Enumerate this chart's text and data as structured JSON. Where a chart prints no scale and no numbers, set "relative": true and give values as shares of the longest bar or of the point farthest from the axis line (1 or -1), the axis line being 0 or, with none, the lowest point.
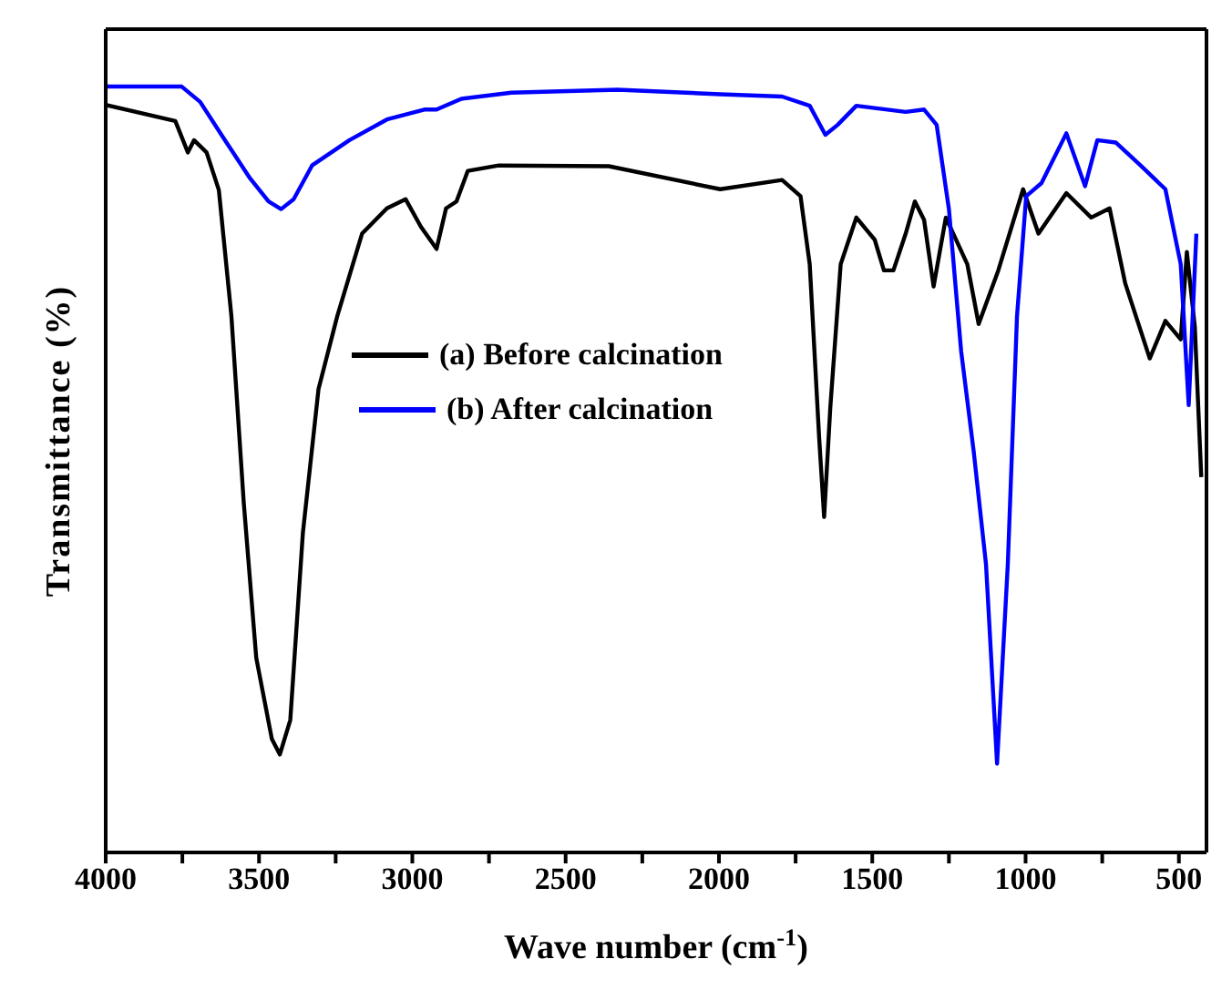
{
  "chart_data": {
    "type": "line",
    "relative": true,
    "xlabel": "Wave number (cm$^{-1}$)",
    "ylabel": "Transmittance (%)",
    "xlim": [
      4000,
      410
    ],
    "xticks": [
      4000,
      {
        "value": 3750,
        "label": null
      },
      3500,
      {
        "value": 3250,
        "label": null
      },
      3000,
      {
        "value": 2750,
        "label": null
      },
      2500,
      {
        "value": 2250,
        "label": null
      },
      2000,
      {
        "value": 1750,
        "label": null
      },
      1500,
      {
        "value": 1250,
        "label": null
      },
      1000,
      {
        "value": 750,
        "label": null
      },
      500
    ],
    "legend": "center left",
    "line_style": "solid",
    "marker": "none",
    "series": [
      {
        "name": "(a) Before calcination",
        "color": "#000000",
        "x": [
          4000,
          3773,
          3732,
          3712,
          3671,
          3631,
          3590,
          3550,
          3509,
          3458,
          3432,
          3398,
          3357,
          3306,
          3245,
          3164,
          3083,
          3022,
          2972,
          2921,
          2890,
          2856,
          2819,
          2718,
          2359,
          1996,
          1794,
          1734,
          1704,
          1673,
          1657,
          1637,
          1603,
          1552,
          1492,
          1462,
          1431,
          1391,
          1361,
          1331,
          1300,
          1260,
          1190,
          1153,
          1089,
          1008,
          958,
          867,
          786,
          726,
          675,
          595,
          544,
          494,
          474,
          448,
          427
        ],
        "values": [
          0.976,
          0.955,
          0.914,
          0.93,
          0.914,
          0.865,
          0.7,
          0.458,
          0.254,
          0.148,
          0.128,
          0.173,
          0.417,
          0.605,
          0.7,
          0.808,
          0.841,
          0.853,
          0.817,
          0.788,
          0.841,
          0.85,
          0.89,
          0.897,
          0.896,
          0.866,
          0.878,
          0.857,
          0.768,
          0.54,
          0.438,
          0.58,
          0.768,
          0.829,
          0.8,
          0.76,
          0.76,
          0.808,
          0.85,
          0.826,
          0.739,
          0.829,
          0.768,
          0.69,
          0.76,
          0.866,
          0.808,
          0.861,
          0.829,
          0.841,
          0.743,
          0.645,
          0.694,
          0.67,
          0.784,
          0.686,
          0.49
        ]
      },
      {
        "name": "(b) After calcination",
        "color": "#0000ff",
        "x": [
          4000,
          3752,
          3692,
          3611,
          3529,
          3469,
          3428,
          3387,
          3327,
          3205,
          3083,
          2961,
          2921,
          2840,
          2677,
          2331,
          1996,
          1794,
          1704,
          1653,
          1613,
          1552,
          1391,
          1331,
          1290,
          1250,
          1210,
          1169,
          1129,
          1093,
          1058,
          1028,
          998,
          948,
          867,
          806,
          766,
          706,
          625,
          544,
          494,
          468,
          443
        ],
        "values": [
          1.0,
          1.0,
          0.98,
          0.93,
          0.88,
          0.85,
          0.84,
          0.853,
          0.897,
          0.93,
          0.957,
          0.97,
          0.97,
          0.984,
          0.992,
          0.996,
          0.99,
          0.987,
          0.975,
          0.937,
          0.95,
          0.975,
          0.967,
          0.97,
          0.95,
          0.84,
          0.654,
          0.523,
          0.376,
          0.116,
          0.376,
          0.7,
          0.857,
          0.874,
          0.939,
          0.87,
          0.93,
          0.927,
          0.897,
          0.866,
          0.768,
          0.584,
          0.808
        ]
      }
    ]
  }
}
